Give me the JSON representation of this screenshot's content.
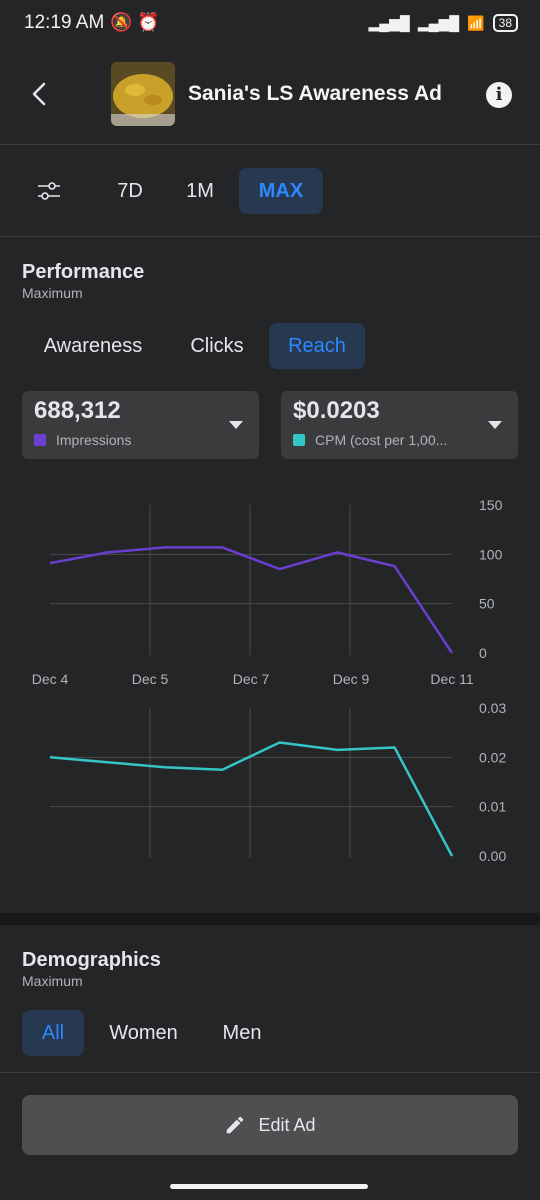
{
  "status": {
    "time": "12:19 AM",
    "battery": "38"
  },
  "header": {
    "title": "Sania's LS Awareness Ad"
  },
  "ranges": [
    {
      "label": "7D",
      "active": false
    },
    {
      "label": "1M",
      "active": false
    },
    {
      "label": "MAX",
      "active": true
    }
  ],
  "performance": {
    "title": "Performance",
    "subtitle": "Maximum",
    "tabs": [
      {
        "label": "Awareness",
        "active": false
      },
      {
        "label": "Clicks",
        "active": false
      },
      {
        "label": "Reach",
        "active": true
      }
    ],
    "metric1": {
      "value": "688,312",
      "label": "Impressions",
      "color": "#6a3fd0"
    },
    "metric2": {
      "value": "$0.0203",
      "label": "CPM (cost per 1,00...",
      "color": "#36c5c6"
    }
  },
  "chart_data": [
    {
      "type": "line",
      "x": [
        "Dec 4",
        "Dec 5",
        "Dec 6",
        "Dec 7",
        "Dec 8",
        "Dec 9",
        "Dec 10",
        "Dec 11"
      ],
      "x_tick_labels": [
        "Dec 4",
        "Dec 5",
        "Dec 7",
        "Dec 9",
        "Dec 11"
      ],
      "series": [
        {
          "name": "Impressions",
          "color": "#6a3fd0",
          "values": [
            91,
            102,
            107,
            107,
            85,
            102,
            88,
            0
          ]
        }
      ],
      "ylim": [
        0,
        150
      ],
      "y_ticks": [
        "150",
        "100",
        "50",
        "0"
      ],
      "grid": true
    },
    {
      "type": "line",
      "x": [
        "Dec 4",
        "Dec 5",
        "Dec 6",
        "Dec 7",
        "Dec 8",
        "Dec 9",
        "Dec 10",
        "Dec 11"
      ],
      "series": [
        {
          "name": "CPM (cost per 1,00...",
          "color": "#36c5c6",
          "values": [
            0.02,
            0.019,
            0.018,
            0.0175,
            0.023,
            0.0215,
            0.022,
            0.0
          ]
        }
      ],
      "ylim": [
        0,
        0.03
      ],
      "y_ticks": [
        "0.03",
        "0.02",
        "0.01",
        "0.00"
      ],
      "grid": true
    }
  ],
  "demographics": {
    "title": "Demographics",
    "subtitle": "Maximum",
    "tabs": [
      {
        "label": "All",
        "active": true
      },
      {
        "label": "Women",
        "active": false
      },
      {
        "label": "Men",
        "active": false
      }
    ]
  },
  "edit_button": {
    "label": "Edit Ad",
    "icon": "pencil-icon"
  }
}
